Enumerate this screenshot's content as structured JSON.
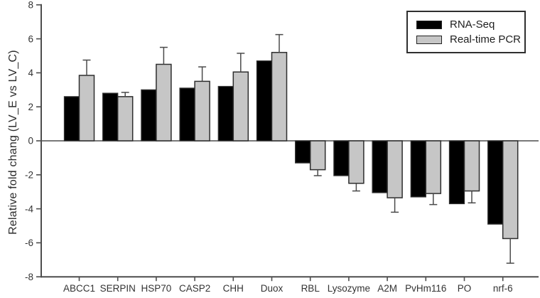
{
  "chart_data": {
    "type": "bar",
    "title": "",
    "xlabel": "",
    "ylabel": "Relative fold chang (LV_E vs LV_C)",
    "ylim": [
      -8,
      8
    ],
    "yticks": [
      8,
      6,
      4,
      2,
      0,
      -2,
      -4,
      -6,
      -8
    ],
    "grid": false,
    "legend_position": "top-right",
    "categories": [
      "ABCC1",
      "SERPIN",
      "HSP70",
      "CASP2",
      "CHH",
      "Duox",
      "RBL",
      "Lysozyme",
      "A2M",
      "PvHm116",
      "PO",
      "nrf-6"
    ],
    "series": [
      {
        "name": "RNA-Seq",
        "color": "#000000",
        "values": [
          2.6,
          2.8,
          3.0,
          3.1,
          3.2,
          4.7,
          -1.3,
          -2.05,
          -3.05,
          -3.3,
          -3.7,
          -4.9
        ]
      },
      {
        "name": "Real-time PCR",
        "color": "#c6c6c6",
        "values": [
          3.85,
          2.6,
          4.5,
          3.5,
          4.05,
          5.2,
          -1.7,
          -2.5,
          -3.35,
          -3.1,
          -2.95,
          -5.75
        ],
        "errors": [
          0.9,
          0.25,
          1.0,
          0.85,
          1.1,
          1.05,
          0.35,
          0.45,
          0.85,
          0.65,
          0.7,
          1.45
        ]
      }
    ],
    "colors": {
      "axis": "#4d4d4d",
      "bar_stroke": "#2e2e2e",
      "error_bar": "#4a4a4a",
      "tick_text": "#333333"
    }
  }
}
